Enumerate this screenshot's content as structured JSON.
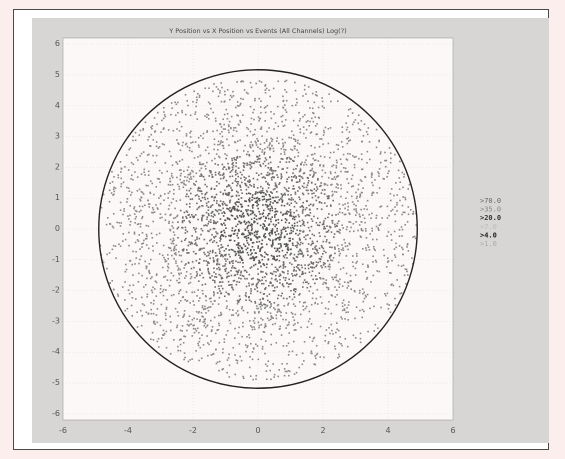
{
  "chart_data": {
    "type": "scatter",
    "title": "Y Position vs X Position vs Events (All Channels) Log(?)",
    "xlabel": "",
    "ylabel": "",
    "xlim": [
      -6,
      6
    ],
    "ylim": [
      -6.2,
      6.2
    ],
    "x_ticks": [
      "-6",
      "-4",
      "-2",
      "0",
      "2",
      "4",
      "6"
    ],
    "y_ticks": [
      "6",
      "5",
      "4",
      "3",
      "2",
      "1",
      "0",
      "-1",
      "-2",
      "-3",
      "-4",
      "-5",
      "-6"
    ],
    "grid": true,
    "legend_position": "right",
    "circle": {
      "center": [
        0,
        0
      ],
      "radius": 4.9
    },
    "series": [
      {
        "name": ">70.0",
        "color": "#666666"
      },
      {
        "name": ">35.0",
        "color": "#888888"
      },
      {
        "name": ">20.0",
        "color": "#333333"
      },
      {
        "name": ">7.0",
        "color": "#bbbbbb"
      },
      {
        "name": ">4.0",
        "color": "#222222"
      },
      {
        "name": ">1.0",
        "color": "#aaaaaa"
      }
    ],
    "marker_size": 1.6,
    "colors": {
      "frame": "#4a4a4a",
      "panel": "#d8d6d4",
      "plot_bg": "#fcf8f8",
      "grid": "#cfcfcf",
      "points": "#6a6a6a"
    }
  }
}
